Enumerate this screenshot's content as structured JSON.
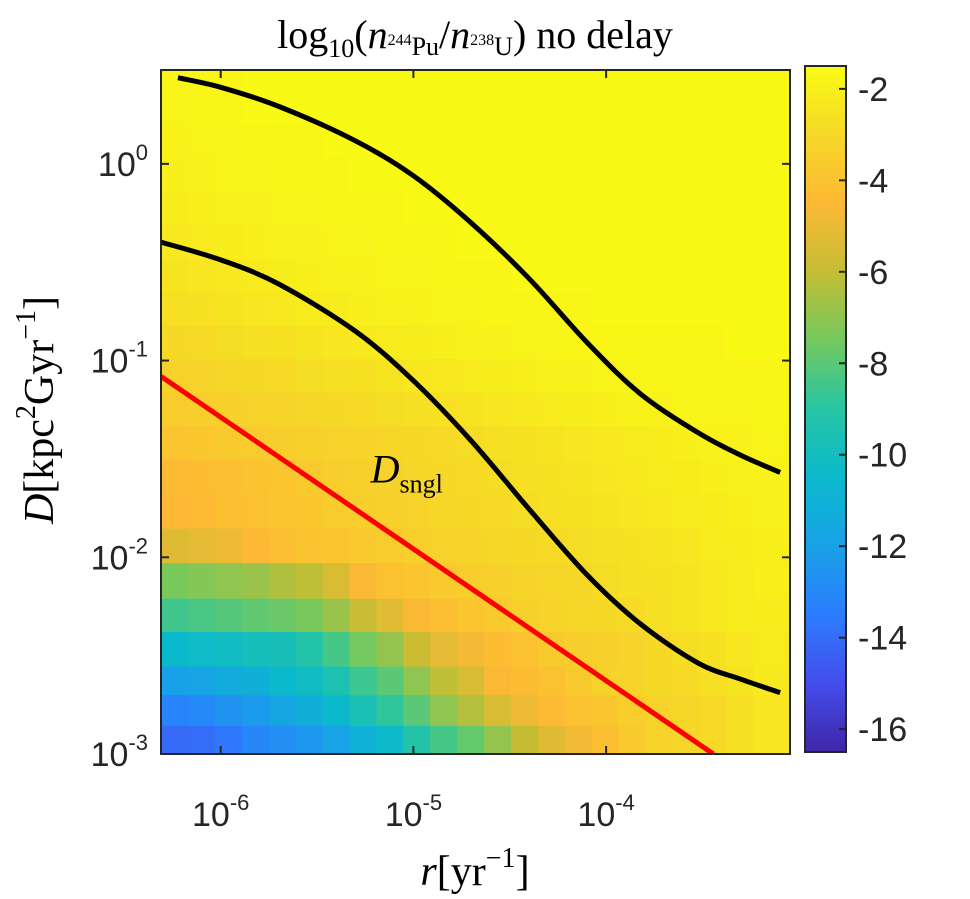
{
  "chart_data": {
    "type": "heatmap",
    "title": {
      "func": "log",
      "func_sub": "10",
      "open": "(",
      "num_n": "n",
      "num_sub_mass": "244",
      "num_sub_el": "Pu",
      "slash": "/",
      "den_n": "n",
      "den_sub_mass": "238",
      "den_sub_el": "U",
      "close": ")",
      "suffix": " no delay"
    },
    "xlabel": {
      "var": "r",
      "open": "[yr",
      "exp": "−1",
      "close": "]"
    },
    "ylabel": {
      "var": "D",
      "open": "[kpc",
      "exp1": "2",
      "mid": "Gyr",
      "exp2": "−1",
      "close": "]"
    },
    "xscale": "log",
    "yscale": "log",
    "xlim": [
      4.9e-07,
      0.0009
    ],
    "ylim": [
      0.001,
      3
    ],
    "x_ticks": [
      {
        "value": 1e-06,
        "base": "10",
        "exp": "-6"
      },
      {
        "value": 1e-05,
        "base": "10",
        "exp": "-5"
      },
      {
        "value": 0.0001,
        "base": "10",
        "exp": "-4"
      }
    ],
    "y_ticks": [
      {
        "value": 0.001,
        "base": "10",
        "exp": "-3"
      },
      {
        "value": 0.01,
        "base": "10",
        "exp": "-2"
      },
      {
        "value": 0.1,
        "base": "10",
        "exp": "-1"
      },
      {
        "value": 1,
        "base": "10",
        "exp": "0"
      }
    ],
    "colorbar": {
      "range": [
        -16.5,
        -1.5
      ],
      "colormap": "parula",
      "ticks": [
        {
          "value": -2,
          "label": "-2"
        },
        {
          "value": -4,
          "label": "-4"
        },
        {
          "value": -6,
          "label": "-6"
        },
        {
          "value": -8,
          "label": "-8"
        },
        {
          "value": -10,
          "label": "-10"
        },
        {
          "value": -12,
          "label": "-12"
        },
        {
          "value": -14,
          "label": "-14"
        },
        {
          "value": -16,
          "label": "-16"
        }
      ]
    },
    "grid": {
      "x_edges": [
        4.9e-07,
        6.8e-07,
        9.3e-07,
        1.29e-06,
        1.78e-06,
        2.45e-06,
        3.38e-06,
        4.66e-06,
        6.43e-06,
        8.87e-06,
        1.22e-05,
        1.69e-05,
        2.33e-05,
        3.21e-05,
        4.43e-05,
        6.11e-05,
        8.43e-05,
        0.000116,
        0.00016,
        0.000221,
        0.000305,
        0.000421,
        0.00058,
        0.0009
      ],
      "y_edges": [
        0.001,
        0.0014,
        0.002,
        0.0028,
        0.0042,
        0.0062,
        0.0094,
        0.0141,
        0.0212,
        0.0316,
        0.0467,
        0.0692,
        0.1025,
        0.1517,
        0.2246,
        0.3324,
        0.4921,
        0.7284,
        1.078,
        1.596,
        3
      ],
      "values": [
        [
          -14.1,
          -14,
          -13.7,
          -13.1,
          -12.8,
          -12.4,
          -11.9,
          -11,
          -10.4,
          -9.2,
          -8.4,
          -7.8,
          -6.9,
          -6,
          -5.3,
          -4.8,
          -4.2,
          -3.7,
          -3.3,
          -3.1,
          -2.9,
          -2.7,
          -2.4
        ],
        [
          -13.2,
          -13,
          -12.6,
          -12.3,
          -11.7,
          -11.2,
          -10.5,
          -9.6,
          -8.8,
          -8,
          -7,
          -6.3,
          -5.5,
          -4.9,
          -4.4,
          -4.1,
          -3.9,
          -3.5,
          -3.3,
          -3.1,
          -2.9,
          -2.7,
          -2.4
        ],
        [
          -12,
          -11.8,
          -11.4,
          -11.1,
          -10.5,
          -10.2,
          -9.5,
          -8.6,
          -8,
          -7,
          -6.1,
          -5.5,
          -4.6,
          -4.3,
          -4.1,
          -3.7,
          -3.3,
          -3.2,
          -3,
          -2.9,
          -2.7,
          -2.5,
          -2.3
        ],
        [
          -10.5,
          -10.3,
          -10.2,
          -9.9,
          -9.7,
          -9.2,
          -8.4,
          -7.5,
          -6.9,
          -5.8,
          -5.1,
          -4.7,
          -4.3,
          -4.1,
          -3.7,
          -3.5,
          -3.4,
          -3.2,
          -3,
          -2.8,
          -2.6,
          -2.4,
          -2.2
        ],
        [
          -8.5,
          -8.3,
          -8.1,
          -7.9,
          -7.7,
          -7.4,
          -6.8,
          -5.9,
          -5.2,
          -4.6,
          -4.2,
          -3.9,
          -3.7,
          -3.4,
          -3.2,
          -3.1,
          -3,
          -2.9,
          -2.7,
          -2.5,
          -2.3,
          -2.2,
          -2.1
        ],
        [
          -7.4,
          -7.2,
          -7,
          -6.8,
          -6.4,
          -6.1,
          -5.5,
          -4.6,
          -4.1,
          -3.9,
          -3.7,
          -3.5,
          -3.4,
          -3.2,
          -3.1,
          -3,
          -2.8,
          -2.7,
          -2.6,
          -2.5,
          -2.3,
          -2.2,
          -2
        ],
        [
          -5.3,
          -5.1,
          -4.9,
          -4.5,
          -4.2,
          -4,
          -3.9,
          -3.7,
          -3.6,
          -3.4,
          -3.3,
          -3.2,
          -3.1,
          -3,
          -2.9,
          -2.8,
          -2.7,
          -2.6,
          -2.5,
          -2.4,
          -2.2,
          -2.1,
          -2
        ],
        [
          -4.5,
          -4.4,
          -4.2,
          -4.1,
          -3.9,
          -3.8,
          -3.6,
          -3.5,
          -3.4,
          -3.3,
          -3.1,
          -3,
          -2.9,
          -2.8,
          -2.7,
          -2.6,
          -2.5,
          -2.4,
          -2.3,
          -2.2,
          -2.1,
          -2,
          -1.9
        ],
        [
          -4.4,
          -4.3,
          -4.2,
          -4,
          -3.9,
          -3.7,
          -3.5,
          -3.4,
          -3.3,
          -3.1,
          -3,
          -2.9,
          -2.8,
          -2.7,
          -2.6,
          -2.5,
          -2.4,
          -2.3,
          -2.2,
          -2.1,
          -2,
          -1.9,
          -1.9
        ],
        [
          -3.9,
          -3.8,
          -3.7,
          -3.6,
          -3.5,
          -3.4,
          -3.3,
          -3.2,
          -3.1,
          -3,
          -2.9,
          -2.8,
          -2.7,
          -2.6,
          -2.5,
          -2.4,
          -2.3,
          -2.2,
          -2.1,
          -2,
          -1.9,
          -1.9,
          -1.8
        ],
        [
          -3.6,
          -3.5,
          -3.4,
          -3.3,
          -3.2,
          -3.1,
          -3,
          -2.9,
          -2.8,
          -2.7,
          -2.6,
          -2.5,
          -2.4,
          -2.3,
          -2.2,
          -2.1,
          -2,
          -1.9,
          -1.9,
          -1.8,
          -1.8,
          -1.8,
          -1.7
        ],
        [
          -3.3,
          -3.2,
          -3.1,
          -3,
          -2.9,
          -2.8,
          -2.7,
          -2.6,
          -2.5,
          -2.4,
          -2.3,
          -2.2,
          -2.1,
          -2,
          -1.9,
          -1.9,
          -1.8,
          -1.8,
          -1.7,
          -1.7,
          -1.7,
          -1.7,
          -1.7
        ],
        [
          -3,
          -2.9,
          -2.8,
          -2.7,
          -2.6,
          -2.5,
          -2.4,
          -2.3,
          -2.2,
          -2.1,
          -2,
          -1.9,
          -1.9,
          -1.8,
          -1.8,
          -1.7,
          -1.7,
          -1.7,
          -1.7,
          -1.7,
          -1.7,
          -1.6,
          -1.6
        ],
        [
          -2.7,
          -2.6,
          -2.5,
          -2.4,
          -2.3,
          -2.2,
          -2.1,
          -2,
          -1.9,
          -1.9,
          -1.8,
          -1.8,
          -1.7,
          -1.7,
          -1.7,
          -1.7,
          -1.6,
          -1.6,
          -1.6,
          -1.6,
          -1.6,
          -1.6,
          -1.6
        ],
        [
          -2.5,
          -2.4,
          -2.3,
          -2.2,
          -2.1,
          -2,
          -1.9,
          -1.9,
          -1.8,
          -1.8,
          -1.7,
          -1.7,
          -1.7,
          -1.6,
          -1.6,
          -1.6,
          -1.6,
          -1.6,
          -1.6,
          -1.6,
          -1.6,
          -1.6,
          -1.6
        ],
        [
          -2.3,
          -2.2,
          -2.1,
          -2,
          -1.9,
          -1.9,
          -1.8,
          -1.8,
          -1.7,
          -1.7,
          -1.7,
          -1.6,
          -1.6,
          -1.6,
          -1.6,
          -1.6,
          -1.6,
          -1.6,
          -1.6,
          -1.6,
          -1.6,
          -1.6,
          -1.6
        ],
        [
          -2.1,
          -2,
          -1.9,
          -1.9,
          -1.8,
          -1.8,
          -1.7,
          -1.7,
          -1.7,
          -1.6,
          -1.6,
          -1.6,
          -1.6,
          -1.6,
          -1.6,
          -1.6,
          -1.6,
          -1.6,
          -1.6,
          -1.6,
          -1.6,
          -1.6,
          -1.6
        ],
        [
          -2,
          -1.9,
          -1.8,
          -1.8,
          -1.7,
          -1.7,
          -1.7,
          -1.6,
          -1.6,
          -1.6,
          -1.6,
          -1.6,
          -1.6,
          -1.6,
          -1.6,
          -1.6,
          -1.6,
          -1.6,
          -1.6,
          -1.6,
          -1.6,
          -1.6,
          -1.6
        ],
        [
          -1.9,
          -1.8,
          -1.8,
          -1.7,
          -1.7,
          -1.7,
          -1.6,
          -1.6,
          -1.6,
          -1.6,
          -1.6,
          -1.6,
          -1.6,
          -1.6,
          -1.6,
          -1.6,
          -1.6,
          -1.6,
          -1.6,
          -1.6,
          -1.6,
          -1.6,
          -1.6
        ],
        [
          -1.8,
          -1.7,
          -1.7,
          -1.6,
          -1.6,
          -1.6,
          -1.6,
          -1.6,
          -1.6,
          -1.6,
          -1.6,
          -1.6,
          -1.6,
          -1.6,
          -1.6,
          -1.6,
          -1.6,
          -1.6,
          -1.6,
          -1.6,
          -1.6,
          -1.6,
          -1.6
        ]
      ]
    },
    "contours": [
      {
        "color": "#000000",
        "points": [
          [
            6e-07,
            2.74
          ],
          [
            1e-06,
            2.45
          ],
          [
            2e-06,
            1.96
          ],
          [
            5e-06,
            1.31
          ],
          [
            1e-05,
            0.87
          ],
          [
            2e-05,
            0.5
          ],
          [
            4e-05,
            0.26
          ],
          [
            8e-05,
            0.123
          ],
          [
            0.00015,
            0.068
          ],
          [
            0.0003,
            0.043
          ],
          [
            0.0005,
            0.033
          ],
          [
            0.0008,
            0.027
          ]
        ]
      },
      {
        "color": "#000000",
        "points": [
          [
            4.9e-07,
            0.4
          ],
          [
            1e-06,
            0.325
          ],
          [
            2e-06,
            0.245
          ],
          [
            5e-06,
            0.141
          ],
          [
            1e-05,
            0.079
          ],
          [
            2e-05,
            0.039
          ],
          [
            4e-05,
            0.0175
          ],
          [
            8e-05,
            0.0081
          ],
          [
            0.00015,
            0.0046
          ],
          [
            0.0003,
            0.0029
          ],
          [
            0.0005,
            0.0024
          ],
          [
            0.0008,
            0.00205
          ]
        ]
      }
    ],
    "d_sngl_line": {
      "color": "#ff0000",
      "points": [
        [
          4.9e-07,
          0.0831
        ],
        [
          0.00036,
          0.001
        ]
      ]
    },
    "annotation": {
      "var": "D",
      "sub": "sngl",
      "color": "#ff0000",
      "x": 6e-06,
      "y": 0.024
    }
  }
}
